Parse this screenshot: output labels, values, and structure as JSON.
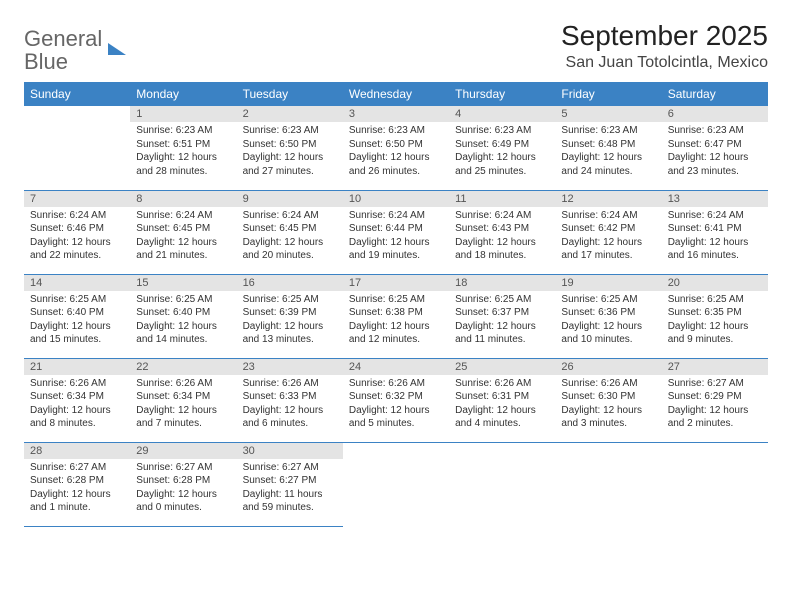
{
  "brand": {
    "part1": "General",
    "part2": "Blue"
  },
  "title": "September 2025",
  "location": "San Juan Totolcintla, Mexico",
  "colors": {
    "header_bg": "#3b82c4",
    "daynum_bg": "#e4e4e4",
    "text": "#333333"
  },
  "weekdays": [
    "Sunday",
    "Monday",
    "Tuesday",
    "Wednesday",
    "Thursday",
    "Friday",
    "Saturday"
  ],
  "weeks": [
    [
      null,
      {
        "n": "1",
        "sr": "Sunrise: 6:23 AM",
        "ss": "Sunset: 6:51 PM",
        "dl": "Daylight: 12 hours and 28 minutes."
      },
      {
        "n": "2",
        "sr": "Sunrise: 6:23 AM",
        "ss": "Sunset: 6:50 PM",
        "dl": "Daylight: 12 hours and 27 minutes."
      },
      {
        "n": "3",
        "sr": "Sunrise: 6:23 AM",
        "ss": "Sunset: 6:50 PM",
        "dl": "Daylight: 12 hours and 26 minutes."
      },
      {
        "n": "4",
        "sr": "Sunrise: 6:23 AM",
        "ss": "Sunset: 6:49 PM",
        "dl": "Daylight: 12 hours and 25 minutes."
      },
      {
        "n": "5",
        "sr": "Sunrise: 6:23 AM",
        "ss": "Sunset: 6:48 PM",
        "dl": "Daylight: 12 hours and 24 minutes."
      },
      {
        "n": "6",
        "sr": "Sunrise: 6:23 AM",
        "ss": "Sunset: 6:47 PM",
        "dl": "Daylight: 12 hours and 23 minutes."
      }
    ],
    [
      {
        "n": "7",
        "sr": "Sunrise: 6:24 AM",
        "ss": "Sunset: 6:46 PM",
        "dl": "Daylight: 12 hours and 22 minutes."
      },
      {
        "n": "8",
        "sr": "Sunrise: 6:24 AM",
        "ss": "Sunset: 6:45 PM",
        "dl": "Daylight: 12 hours and 21 minutes."
      },
      {
        "n": "9",
        "sr": "Sunrise: 6:24 AM",
        "ss": "Sunset: 6:45 PM",
        "dl": "Daylight: 12 hours and 20 minutes."
      },
      {
        "n": "10",
        "sr": "Sunrise: 6:24 AM",
        "ss": "Sunset: 6:44 PM",
        "dl": "Daylight: 12 hours and 19 minutes."
      },
      {
        "n": "11",
        "sr": "Sunrise: 6:24 AM",
        "ss": "Sunset: 6:43 PM",
        "dl": "Daylight: 12 hours and 18 minutes."
      },
      {
        "n": "12",
        "sr": "Sunrise: 6:24 AM",
        "ss": "Sunset: 6:42 PM",
        "dl": "Daylight: 12 hours and 17 minutes."
      },
      {
        "n": "13",
        "sr": "Sunrise: 6:24 AM",
        "ss": "Sunset: 6:41 PM",
        "dl": "Daylight: 12 hours and 16 minutes."
      }
    ],
    [
      {
        "n": "14",
        "sr": "Sunrise: 6:25 AM",
        "ss": "Sunset: 6:40 PM",
        "dl": "Daylight: 12 hours and 15 minutes."
      },
      {
        "n": "15",
        "sr": "Sunrise: 6:25 AM",
        "ss": "Sunset: 6:40 PM",
        "dl": "Daylight: 12 hours and 14 minutes."
      },
      {
        "n": "16",
        "sr": "Sunrise: 6:25 AM",
        "ss": "Sunset: 6:39 PM",
        "dl": "Daylight: 12 hours and 13 minutes."
      },
      {
        "n": "17",
        "sr": "Sunrise: 6:25 AM",
        "ss": "Sunset: 6:38 PM",
        "dl": "Daylight: 12 hours and 12 minutes."
      },
      {
        "n": "18",
        "sr": "Sunrise: 6:25 AM",
        "ss": "Sunset: 6:37 PM",
        "dl": "Daylight: 12 hours and 11 minutes."
      },
      {
        "n": "19",
        "sr": "Sunrise: 6:25 AM",
        "ss": "Sunset: 6:36 PM",
        "dl": "Daylight: 12 hours and 10 minutes."
      },
      {
        "n": "20",
        "sr": "Sunrise: 6:25 AM",
        "ss": "Sunset: 6:35 PM",
        "dl": "Daylight: 12 hours and 9 minutes."
      }
    ],
    [
      {
        "n": "21",
        "sr": "Sunrise: 6:26 AM",
        "ss": "Sunset: 6:34 PM",
        "dl": "Daylight: 12 hours and 8 minutes."
      },
      {
        "n": "22",
        "sr": "Sunrise: 6:26 AM",
        "ss": "Sunset: 6:34 PM",
        "dl": "Daylight: 12 hours and 7 minutes."
      },
      {
        "n": "23",
        "sr": "Sunrise: 6:26 AM",
        "ss": "Sunset: 6:33 PM",
        "dl": "Daylight: 12 hours and 6 minutes."
      },
      {
        "n": "24",
        "sr": "Sunrise: 6:26 AM",
        "ss": "Sunset: 6:32 PM",
        "dl": "Daylight: 12 hours and 5 minutes."
      },
      {
        "n": "25",
        "sr": "Sunrise: 6:26 AM",
        "ss": "Sunset: 6:31 PM",
        "dl": "Daylight: 12 hours and 4 minutes."
      },
      {
        "n": "26",
        "sr": "Sunrise: 6:26 AM",
        "ss": "Sunset: 6:30 PM",
        "dl": "Daylight: 12 hours and 3 minutes."
      },
      {
        "n": "27",
        "sr": "Sunrise: 6:27 AM",
        "ss": "Sunset: 6:29 PM",
        "dl": "Daylight: 12 hours and 2 minutes."
      }
    ],
    [
      {
        "n": "28",
        "sr": "Sunrise: 6:27 AM",
        "ss": "Sunset: 6:28 PM",
        "dl": "Daylight: 12 hours and 1 minute."
      },
      {
        "n": "29",
        "sr": "Sunrise: 6:27 AM",
        "ss": "Sunset: 6:28 PM",
        "dl": "Daylight: 12 hours and 0 minutes."
      },
      {
        "n": "30",
        "sr": "Sunrise: 6:27 AM",
        "ss": "Sunset: 6:27 PM",
        "dl": "Daylight: 11 hours and 59 minutes."
      },
      null,
      null,
      null,
      null
    ]
  ]
}
